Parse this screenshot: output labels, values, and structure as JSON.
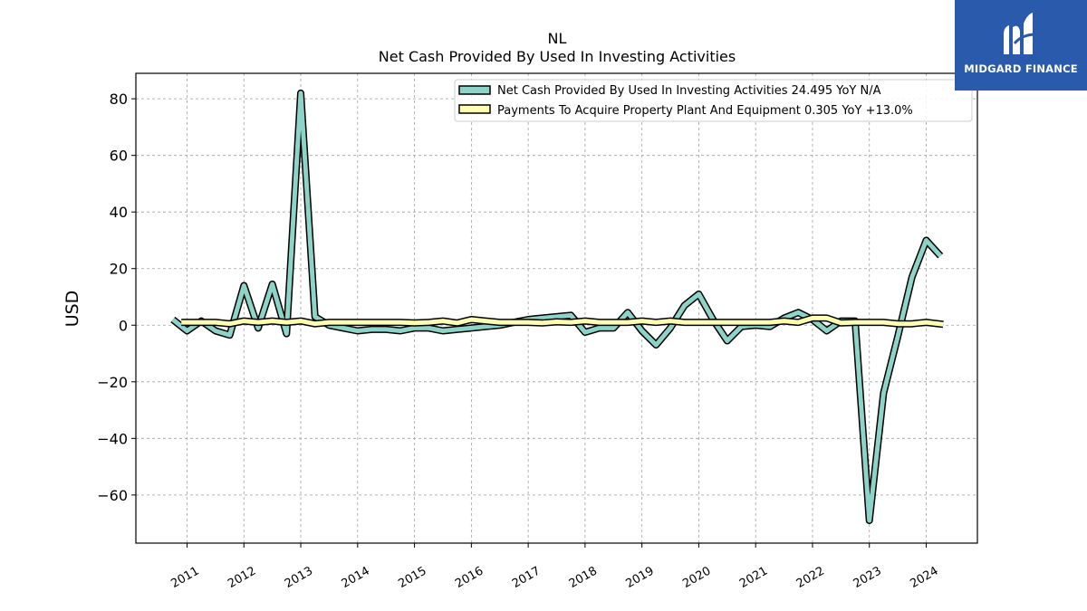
{
  "brand": {
    "name": "MIDGARD FINANCE",
    "logo_icon": "midgard-m-icon",
    "background": "#2a5aab"
  },
  "chart_data": {
    "type": "line",
    "title": "NL",
    "subtitle": "Net Cash Provided By Used In Investing Activities",
    "xlabel": "",
    "ylabel": "USD",
    "xlim": [
      2010.1,
      2024.9
    ],
    "ylim": [
      -77,
      89
    ],
    "x_ticks": [
      2011,
      2012,
      2013,
      2014,
      2015,
      2016,
      2017,
      2018,
      2019,
      2020,
      2021,
      2022,
      2023,
      2024
    ],
    "x_tick_labels": [
      "2011",
      "2012",
      "2013",
      "2014",
      "2015",
      "2016",
      "2017",
      "2018",
      "2019",
      "2020",
      "2021",
      "2022",
      "2023",
      "2024"
    ],
    "y_ticks": [
      80,
      60,
      40,
      20,
      0,
      -20,
      -40,
      -60
    ],
    "y_tick_labels": [
      "80",
      "60",
      "40",
      "20",
      "0",
      "−20",
      "−40",
      "−60"
    ],
    "grid": true,
    "legend_position": "top-right",
    "series": [
      {
        "name": "Net Cash Provided By Used In Investing Activities",
        "legend_label": "Net Cash Provided By Used In Investing Activities  24.495 YoY N/A",
        "color": "#8dd3c7",
        "x": [
          2010.75,
          2011.0,
          2011.25,
          2011.5,
          2011.75,
          2012.0,
          2012.25,
          2012.5,
          2012.75,
          2013.0,
          2013.25,
          2013.5,
          2013.75,
          2014.0,
          2014.25,
          2014.5,
          2014.75,
          2015.0,
          2015.25,
          2015.5,
          2015.75,
          2016.0,
          2016.25,
          2016.5,
          2016.75,
          2017.0,
          2017.25,
          2017.5,
          2017.75,
          2018.0,
          2018.25,
          2018.5,
          2018.75,
          2019.0,
          2019.25,
          2019.5,
          2019.75,
          2020.0,
          2020.25,
          2020.5,
          2020.75,
          2021.0,
          2021.25,
          2021.5,
          2021.75,
          2022.0,
          2022.25,
          2022.5,
          2022.75,
          2023.0,
          2023.25,
          2023.5,
          2023.75,
          2024.0,
          2024.25
        ],
        "y": [
          2,
          -2,
          1.5,
          -2,
          -3.5,
          14,
          -1,
          14.5,
          -3,
          82,
          3,
          0,
          -1,
          -2,
          -1.5,
          -1.5,
          -2,
          -1,
          -1,
          -2,
          -1.5,
          -1,
          -0.5,
          0,
          1,
          2,
          2.5,
          3,
          3.5,
          -2.5,
          -1,
          -1,
          4.5,
          -2,
          -7,
          -1,
          7,
          11,
          2,
          -5.5,
          -0.5,
          0,
          -0.5,
          2.5,
          4.5,
          2,
          -2,
          1.5,
          1.5,
          -69,
          -24,
          -4,
          17,
          30,
          24.5
        ]
      },
      {
        "name": "Payments To Acquire Property Plant And Equipment",
        "legend_label": "Payments To Acquire Property Plant And Equipment  0.305 YoY +13.0%",
        "color": "#ffffb3",
        "x": [
          2010.9,
          2011.0,
          2011.25,
          2011.5,
          2011.75,
          2012.0,
          2012.25,
          2012.5,
          2012.75,
          2013.0,
          2013.25,
          2013.5,
          2013.75,
          2014.0,
          2014.25,
          2014.5,
          2014.75,
          2015.0,
          2015.25,
          2015.5,
          2015.75,
          2016.0,
          2016.25,
          2016.5,
          2016.75,
          2017.0,
          2017.25,
          2017.5,
          2017.75,
          2018.0,
          2018.25,
          2018.5,
          2018.75,
          2019.0,
          2019.25,
          2019.5,
          2019.75,
          2020.0,
          2020.25,
          2020.5,
          2020.75,
          2021.0,
          2021.25,
          2021.5,
          2021.75,
          2022.0,
          2022.25,
          2022.5,
          2022.75,
          2023.0,
          2023.25,
          2023.5,
          2023.75,
          2024.0,
          2024.3
        ],
        "y": [
          1,
          1,
          1,
          1,
          0.5,
          1.5,
          1,
          1.5,
          1,
          1.5,
          0.5,
          1,
          1,
          1,
          1,
          1,
          1,
          0.8,
          1,
          1.5,
          0.8,
          2,
          1.5,
          1,
          1,
          1,
          0.8,
          1.2,
          1,
          1.5,
          1,
          1,
          1,
          1.5,
          1,
          1.5,
          1,
          1,
          1,
          1,
          1,
          1,
          1,
          1.5,
          1,
          2.5,
          2.5,
          0.8,
          1,
          1,
          1,
          0.5,
          0.5,
          1,
          0.3
        ]
      }
    ]
  }
}
